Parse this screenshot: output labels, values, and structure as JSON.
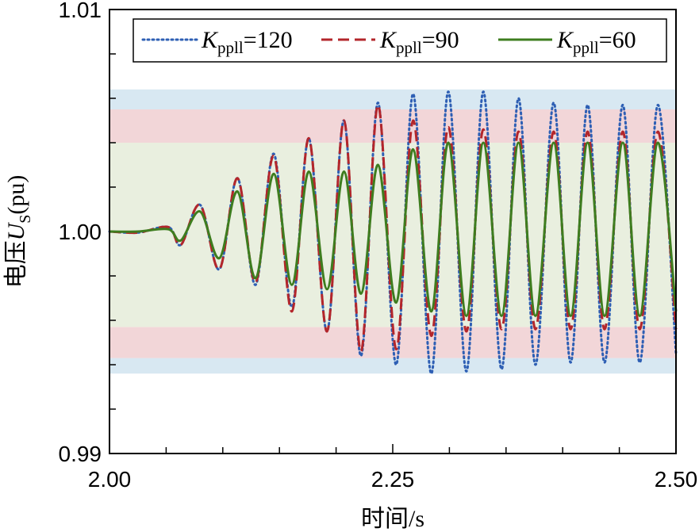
{
  "chart_data": {
    "type": "line",
    "xlabel": "时间/s",
    "ylabel_prefix": "电压",
    "ylabel_var": "U",
    "ylabel_sub": "S",
    "ylabel_unit": "(pu)",
    "xlim": [
      2.0,
      2.5
    ],
    "ylim": [
      0.99,
      1.01
    ],
    "x_ticks": [
      "2.00",
      "2.25",
      "2.50"
    ],
    "y_ticks": [
      "0.99",
      "1.00",
      "1.01"
    ],
    "legend_position": "top-right",
    "bands": [
      {
        "range": [
          0.9936,
          0.9943
        ],
        "color": "#d8e8f2"
      },
      {
        "range": [
          0.9943,
          0.9957
        ],
        "color": "#f2d6d8"
      },
      {
        "range": [
          0.9957,
          1.004
        ],
        "color": "#e9efdf"
      },
      {
        "range": [
          1.004,
          1.0055
        ],
        "color": "#f2d6d8"
      },
      {
        "range": [
          1.0055,
          1.0064
        ],
        "color": "#d8e8f2"
      }
    ],
    "series": [
      {
        "name_main": "K",
        "name_sub": "ppll",
        "name_suffix": "=120",
        "color": "#2e5fb4",
        "style": "dotted",
        "x": [
          2.0,
          2.025,
          2.052,
          2.063,
          2.08,
          2.097,
          2.113,
          2.129,
          2.145,
          2.161,
          2.176,
          2.192,
          2.207,
          2.222,
          2.237,
          2.253,
          2.268,
          2.284,
          2.299,
          2.315,
          2.33,
          2.346,
          2.361,
          2.376,
          2.392,
          2.407,
          2.422,
          2.437,
          2.453,
          2.468,
          2.484,
          2.5
        ],
        "y": [
          1.0,
          0.99995,
          1.0002,
          0.9994,
          1.0012,
          0.9983,
          1.0024,
          0.9976,
          1.0035,
          0.9966,
          1.0042,
          0.9955,
          1.005,
          0.9944,
          1.0058,
          0.994,
          1.0062,
          0.9936,
          1.0063,
          0.9937,
          1.0063,
          0.9938,
          1.006,
          0.994,
          1.0058,
          0.9941,
          1.0057,
          0.9941,
          1.0057,
          0.9941,
          1.0057,
          0.9945
        ]
      },
      {
        "name_main": "K",
        "name_sub": "ppll",
        "name_suffix": "=90",
        "color": "#b3262b",
        "style": "dashed",
        "x": [
          2.0,
          2.025,
          2.052,
          2.063,
          2.08,
          2.097,
          2.113,
          2.129,
          2.145,
          2.161,
          2.176,
          2.192,
          2.207,
          2.222,
          2.237,
          2.253,
          2.268,
          2.284,
          2.299,
          2.315,
          2.33,
          2.346,
          2.361,
          2.376,
          2.392,
          2.407,
          2.422,
          2.437,
          2.453,
          2.468,
          2.484,
          2.5
        ],
        "y": [
          1.0,
          0.99995,
          1.0002,
          0.9994,
          1.0012,
          0.9983,
          1.0024,
          0.9977,
          1.0034,
          0.9964,
          1.0042,
          0.9955,
          1.005,
          0.9946,
          1.0057,
          0.9947,
          1.005,
          0.9953,
          1.0047,
          0.9955,
          1.0046,
          0.9956,
          1.0045,
          0.9956,
          1.0045,
          0.9956,
          1.0045,
          0.9956,
          1.0045,
          0.9956,
          1.0045,
          0.9956
        ]
      },
      {
        "name_main": "K",
        "name_sub": "ppll",
        "name_suffix": "=60",
        "color": "#3e7d1f",
        "style": "solid",
        "x": [
          2.0,
          2.025,
          2.052,
          2.063,
          2.08,
          2.097,
          2.113,
          2.129,
          2.145,
          2.161,
          2.176,
          2.192,
          2.207,
          2.222,
          2.237,
          2.253,
          2.268,
          2.284,
          2.299,
          2.315,
          2.33,
          2.346,
          2.361,
          2.376,
          2.392,
          2.407,
          2.422,
          2.437,
          2.453,
          2.468,
          2.484,
          2.5
        ],
        "y": [
          1.0,
          1.0,
          1.0001,
          0.9996,
          1.0009,
          0.9988,
          1.0018,
          0.9979,
          1.0026,
          0.9976,
          1.0027,
          0.9974,
          1.0027,
          0.9972,
          1.003,
          0.9968,
          1.0037,
          0.9964,
          1.004,
          0.9962,
          1.004,
          0.9962,
          1.004,
          0.9962,
          1.004,
          0.9962,
          1.004,
          0.9962,
          1.004,
          0.9962,
          1.004,
          0.9964
        ]
      }
    ]
  }
}
